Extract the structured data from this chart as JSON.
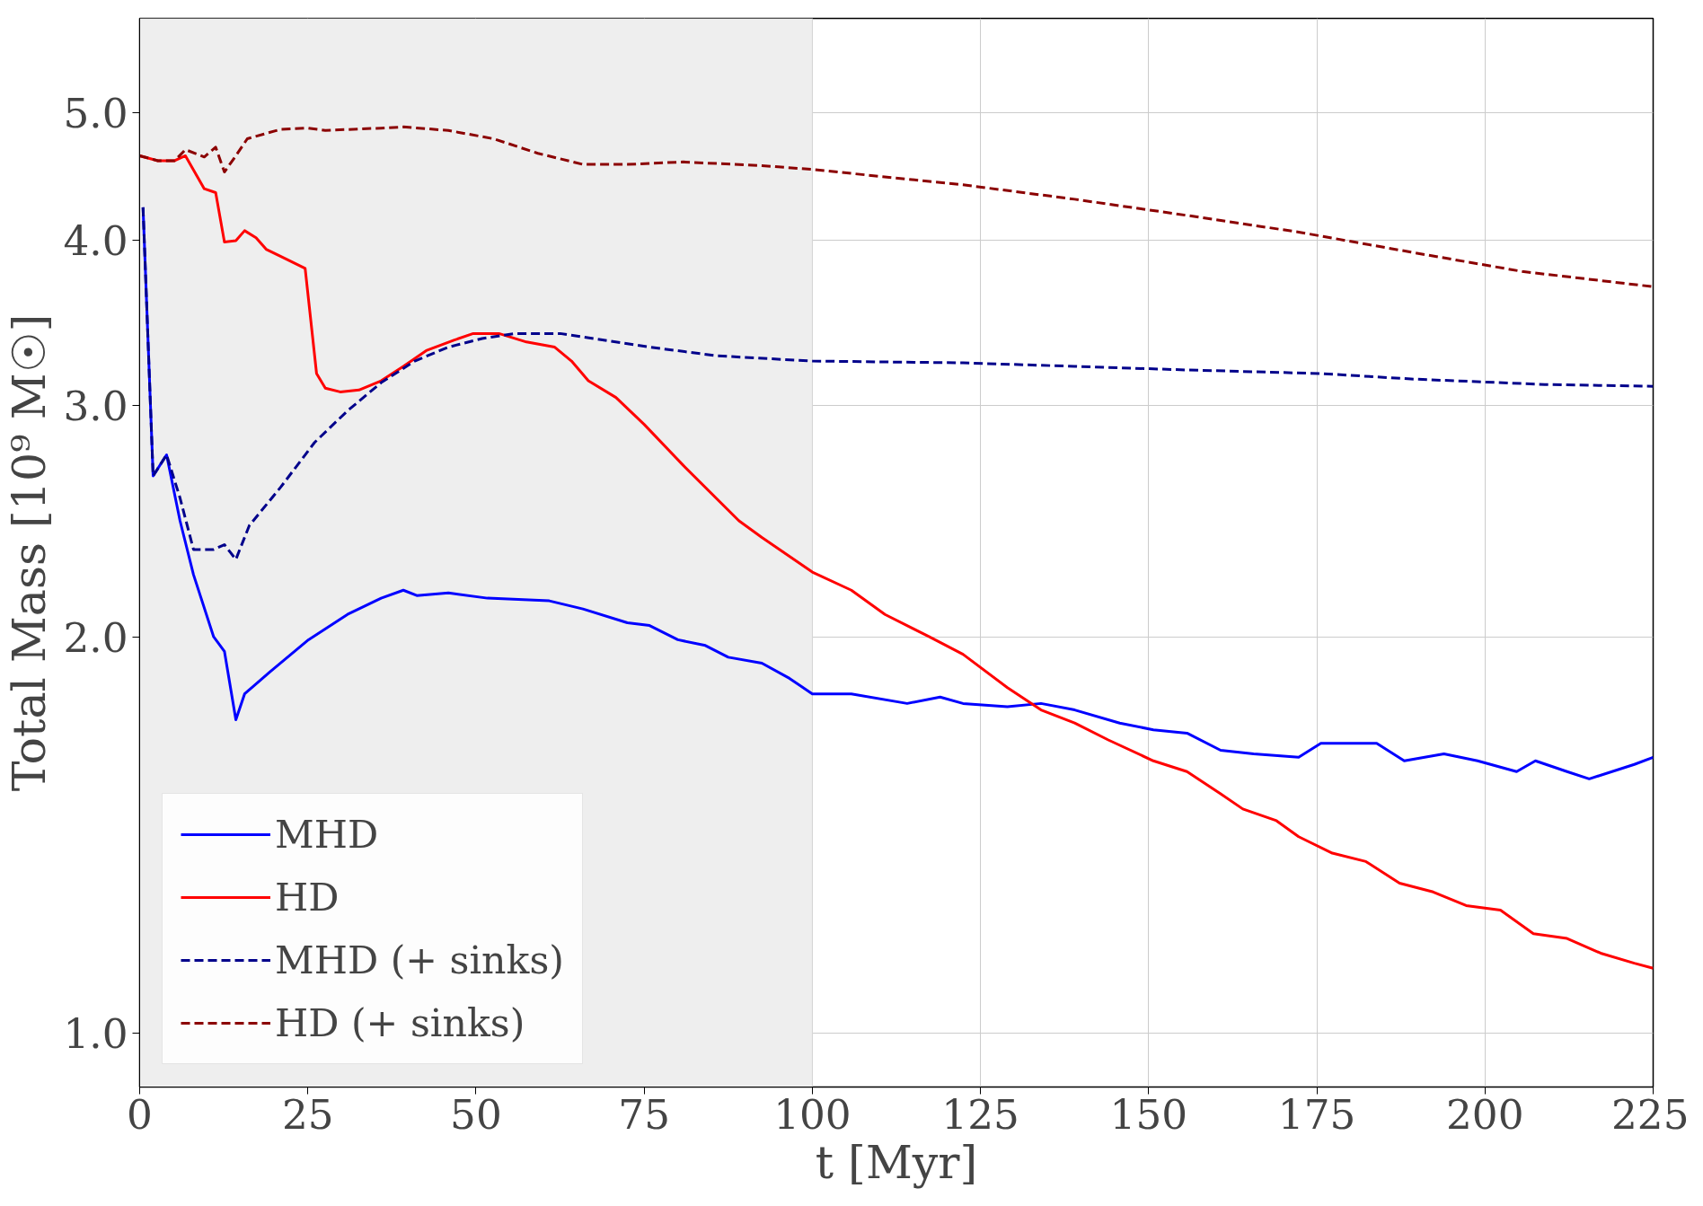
{
  "chart_data": {
    "type": "line",
    "xlabel": "t [Myr]",
    "ylabel": "Total Mass [10⁹ M☉]",
    "log": true,
    "grid": true,
    "legend": "bottom left",
    "xlim": [
      0,
      225
    ],
    "xticks": [
      0,
      25,
      50,
      75,
      100,
      125,
      150,
      175,
      200,
      225
    ],
    "ylim": [
      0.91,
      5.9
    ],
    "yticks": [
      {
        "value": 1,
        "label": "1.0"
      },
      {
        "value": 2,
        "label": "2.0"
      },
      {
        "value": 3,
        "label": "3.0"
      },
      {
        "value": 4,
        "label": "4.0"
      },
      {
        "value": 5,
        "label": "5.0"
      }
    ],
    "bands": [
      {
        "axis": "x",
        "from": 0,
        "to": 100,
        "color": "#eeeeee"
      }
    ],
    "series": [
      {
        "name": "MHD",
        "color": "#0000ff",
        "line_style": "solid",
        "x": [
          0.5,
          2,
          4,
          6,
          8,
          11,
          12.6,
          14.3,
          15.6,
          19.3,
          25.1,
          30.9,
          35.9,
          39.2,
          41.2,
          45.9,
          51.7,
          60.9,
          65.9,
          72.5,
          75.8,
          80,
          84.1,
          87.5,
          92.5,
          96.6,
          100,
          105.8,
          114.1,
          119,
          122.4,
          129,
          134,
          139,
          145.7,
          150.7,
          155.7,
          160.7,
          165.6,
          172.3,
          175.6,
          183.9,
          188,
          193.9,
          198.9,
          204.7,
          207.5,
          212.2,
          215.5,
          222.2,
          225
        ],
        "values": [
          4.24,
          2.65,
          2.75,
          2.45,
          2.23,
          2.0,
          1.95,
          1.73,
          1.81,
          1.88,
          1.99,
          2.08,
          2.14,
          2.17,
          2.15,
          2.16,
          2.14,
          2.13,
          2.1,
          2.05,
          2.04,
          1.99,
          1.97,
          1.93,
          1.91,
          1.86,
          1.81,
          1.81,
          1.78,
          1.8,
          1.78,
          1.77,
          1.78,
          1.76,
          1.72,
          1.7,
          1.69,
          1.64,
          1.63,
          1.62,
          1.66,
          1.66,
          1.61,
          1.63,
          1.61,
          1.58,
          1.61,
          1.58,
          1.56,
          1.6,
          1.62
        ]
      },
      {
        "name": "HD",
        "color": "#ff0000",
        "line_style": "solid",
        "x": [
          0,
          2.7,
          5.2,
          6.8,
          9.6,
          11.3,
          12.6,
          14.3,
          15.6,
          17.3,
          18.8,
          21,
          24.6,
          26.3,
          27.6,
          29.8,
          32.6,
          35.9,
          39.2,
          42.6,
          46.7,
          49.6,
          53.4,
          57.5,
          61.7,
          64.2,
          66.7,
          70.8,
          75,
          80.8,
          89.1,
          92.5,
          100,
          105.8,
          110.8,
          117.4,
          122.4,
          129,
          134,
          139,
          144,
          150.7,
          155.7,
          160.7,
          164,
          169,
          172.3,
          177.3,
          182.3,
          187.3,
          192.3,
          197.2,
          202.3,
          207.2,
          212.2,
          217.2,
          222.2,
          225
        ],
        "values": [
          4.64,
          4.6,
          4.6,
          4.64,
          4.38,
          4.35,
          3.99,
          4.0,
          4.07,
          4.02,
          3.94,
          3.89,
          3.81,
          3.17,
          3.09,
          3.07,
          3.08,
          3.13,
          3.21,
          3.3,
          3.36,
          3.4,
          3.4,
          3.35,
          3.32,
          3.24,
          3.13,
          3.04,
          2.9,
          2.7,
          2.45,
          2.38,
          2.24,
          2.17,
          2.08,
          2.0,
          1.94,
          1.83,
          1.76,
          1.72,
          1.67,
          1.61,
          1.58,
          1.52,
          1.48,
          1.45,
          1.41,
          1.37,
          1.35,
          1.3,
          1.28,
          1.25,
          1.24,
          1.19,
          1.18,
          1.15,
          1.13,
          1.12
        ]
      },
      {
        "name": "MHD (+ sinks)",
        "color": "#00008b",
        "line_style": "dashed",
        "x": [
          0.5,
          2,
          4,
          6,
          8,
          11,
          12.6,
          14.3,
          16.3,
          21,
          26,
          30.9,
          35.9,
          40.9,
          45.9,
          50.9,
          55.9,
          62.5,
          67.5,
          75.8,
          85.8,
          100,
          122.4,
          139,
          155.7,
          175.6,
          189,
          208.9,
          225
        ],
        "values": [
          4.24,
          2.65,
          2.75,
          2.55,
          2.33,
          2.33,
          2.35,
          2.29,
          2.43,
          2.6,
          2.81,
          2.97,
          3.12,
          3.24,
          3.32,
          3.37,
          3.4,
          3.4,
          3.37,
          3.32,
          3.27,
          3.24,
          3.23,
          3.21,
          3.19,
          3.17,
          3.14,
          3.11,
          3.1
        ]
      },
      {
        "name": "HD (+ sinks)",
        "color": "#8b0000",
        "line_style": "dashed",
        "x": [
          0,
          2.7,
          5.2,
          6.8,
          9.6,
          11.3,
          12.6,
          14.3,
          16,
          18.5,
          21,
          25,
          27.6,
          35.9,
          39.2,
          45.9,
          52.6,
          59.2,
          65.9,
          72.5,
          80.8,
          92.5,
          100,
          122.4,
          139,
          155.7,
          172.3,
          189,
          205.5,
          225
        ],
        "values": [
          4.64,
          4.6,
          4.6,
          4.69,
          4.63,
          4.71,
          4.51,
          4.64,
          4.78,
          4.82,
          4.86,
          4.87,
          4.85,
          4.87,
          4.88,
          4.85,
          4.78,
          4.66,
          4.57,
          4.57,
          4.59,
          4.56,
          4.53,
          4.41,
          4.3,
          4.18,
          4.06,
          3.92,
          3.79,
          3.69
        ]
      }
    ]
  }
}
